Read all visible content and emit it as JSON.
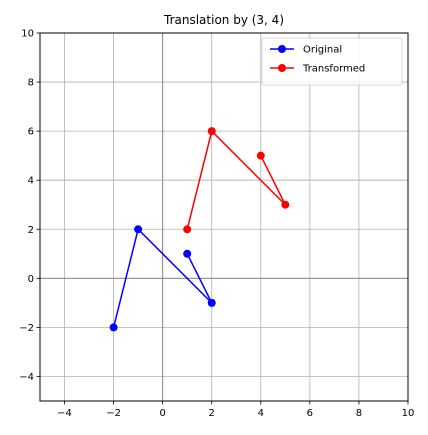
{
  "chart_data": {
    "type": "line",
    "title": "Translation by (3, 4)",
    "xlabel": "",
    "ylabel": "",
    "xlim": [
      -5,
      10
    ],
    "ylim": [
      -5,
      10
    ],
    "xticks": [
      -4,
      -2,
      0,
      2,
      4,
      6,
      8,
      10
    ],
    "yticks": [
      -4,
      -2,
      0,
      2,
      4,
      6,
      8,
      10
    ],
    "grid": true,
    "axis_lines_at_zero": true,
    "legend": "top-right",
    "series": [
      {
        "name": "Original",
        "color": "#0000ff",
        "marker": "circle",
        "points": [
          [
            1,
            1
          ],
          [
            2,
            -1
          ],
          [
            -1,
            2
          ],
          [
            -2,
            -2
          ]
        ]
      },
      {
        "name": "Transformed",
        "color": "#ff0000",
        "marker": "circle",
        "points": [
          [
            4,
            5
          ],
          [
            5,
            3
          ],
          [
            2,
            6
          ],
          [
            1,
            2
          ]
        ]
      }
    ]
  }
}
